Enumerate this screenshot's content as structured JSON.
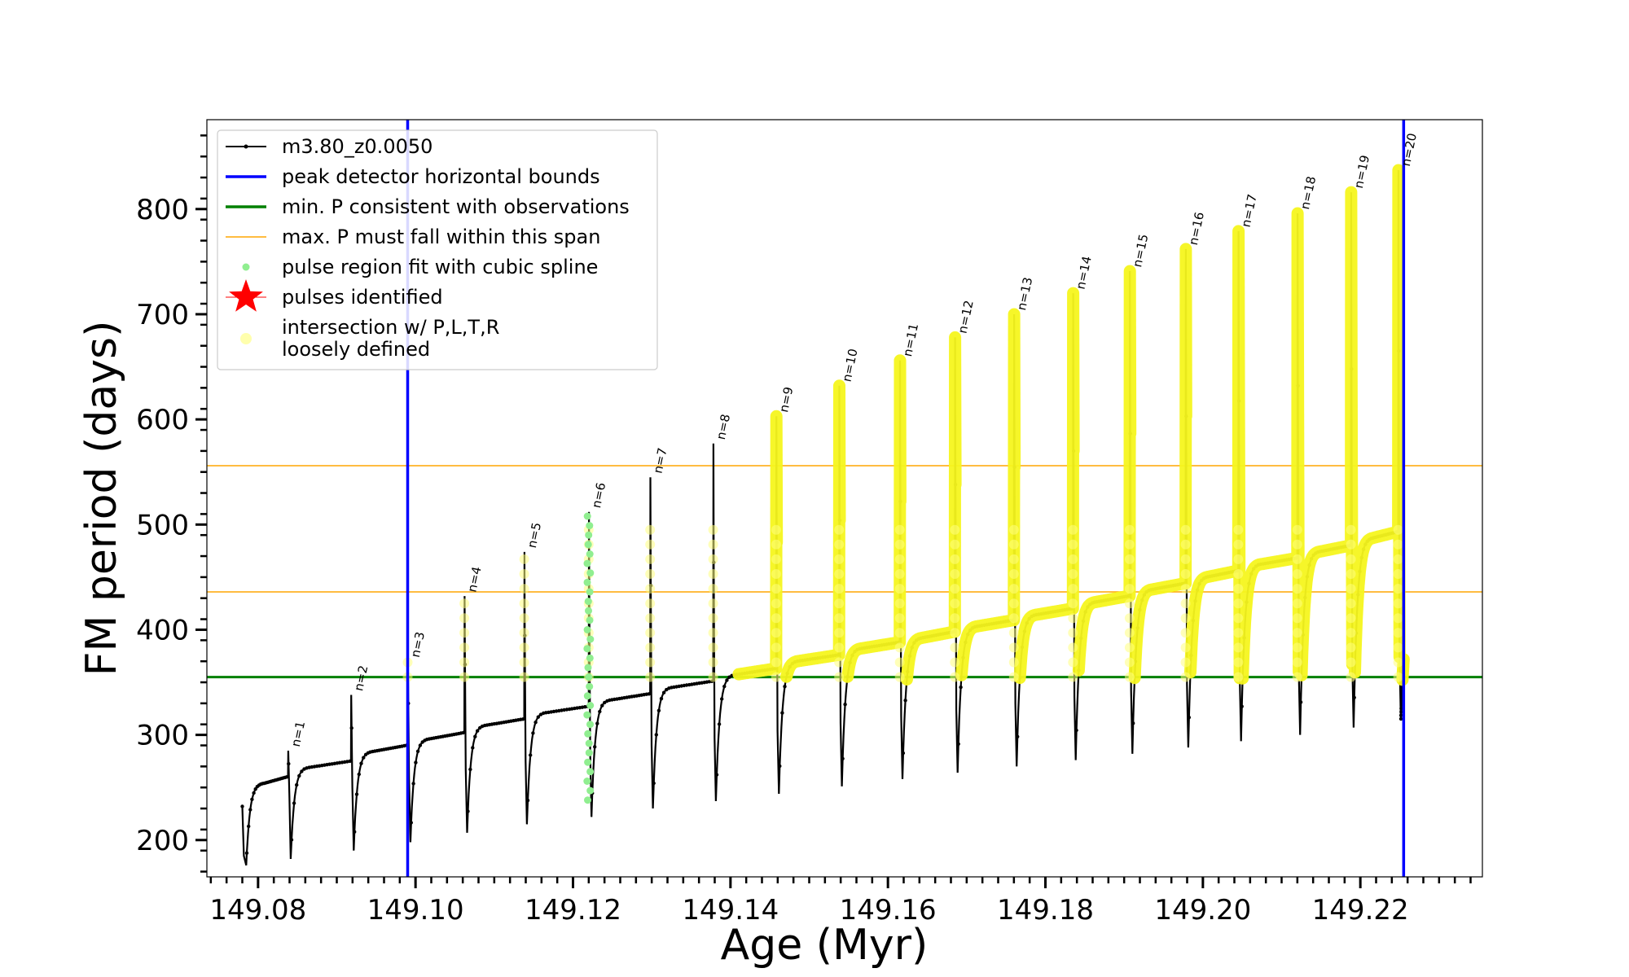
{
  "chart_data": {
    "type": "line",
    "xlabel": "Age (Myr)",
    "ylabel": "FM period (days)",
    "xlim": [
      149.0735,
      149.2355
    ],
    "ylim": [
      165,
      885
    ],
    "x_ticks": [
      149.08,
      149.1,
      149.12,
      149.14,
      149.16,
      149.18,
      149.2,
      149.22
    ],
    "x_tick_labels": [
      "149.08",
      "149.10",
      "149.12",
      "149.14",
      "149.16",
      "149.18",
      "149.20",
      "149.22"
    ],
    "y_ticks": [
      200,
      300,
      400,
      500,
      600,
      700,
      800
    ],
    "y_tick_labels": [
      "200",
      "300",
      "400",
      "500",
      "600",
      "700",
      "800"
    ],
    "grid": false,
    "legend_position": "top-left",
    "legend": [
      {
        "label": "m3.80_z0.0050",
        "style": "line-dots",
        "color": "#000000"
      },
      {
        "label": "peak detector horizontal bounds",
        "style": "line",
        "color": "#0000ff"
      },
      {
        "label": "min. P consistent with observations",
        "style": "line",
        "color": "#008000"
      },
      {
        "label": "max. P must fall within this span",
        "style": "thin-line",
        "color": "#ffa500"
      },
      {
        "label": "pulse region fit with cubic spline",
        "style": "dot",
        "color": "#90ee90"
      },
      {
        "label": "pulses identified",
        "style": "star",
        "color": "#ff0000"
      },
      {
        "label": "intersection w/ P,L,T,R",
        "style": "dot-faint",
        "color": "#ffff99"
      },
      {
        "label": "loosely defined",
        "style": "none",
        "color": "#ffff99"
      }
    ],
    "vertical_lines": [
      149.099,
      149.2255
    ],
    "horizontal_lines": [
      {
        "y": 355,
        "color": "#008000",
        "width": 3
      },
      {
        "y": 436,
        "color": "#ffa500",
        "width": 1.5
      },
      {
        "y": 556,
        "color": "#ffa500",
        "width": 1.5
      }
    ],
    "pulses": [
      {
        "n": "n=1",
        "x": 149.0838,
        "peak": 285,
        "min": 182,
        "plateau": 260
      },
      {
        "n": "n=2",
        "x": 149.0918,
        "peak": 338,
        "min": 190,
        "plateau": 275
      },
      {
        "n": "n=3",
        "x": 149.099,
        "peak": 370,
        "min": 198,
        "plateau": 290
      },
      {
        "n": "n=4",
        "x": 149.1062,
        "peak": 432,
        "min": 207,
        "plateau": 302
      },
      {
        "n": "n=5",
        "x": 149.1138,
        "peak": 474,
        "min": 215,
        "plateau": 315
      },
      {
        "n": "n=6",
        "x": 149.122,
        "peak": 512,
        "min": 222,
        "plateau": 327
      },
      {
        "n": "n=7",
        "x": 149.1298,
        "peak": 545,
        "min": 230,
        "plateau": 339
      },
      {
        "n": "n=8",
        "x": 149.1378,
        "peak": 577,
        "min": 237,
        "plateau": 351
      },
      {
        "n": "n=9",
        "x": 149.1458,
        "peak": 603,
        "min": 244,
        "plateau": 363
      },
      {
        "n": "n=10",
        "x": 149.1538,
        "peak": 632,
        "min": 251,
        "plateau": 376
      },
      {
        "n": "n=11",
        "x": 149.1615,
        "peak": 656,
        "min": 258,
        "plateau": 388
      },
      {
        "n": "n=12",
        "x": 149.1685,
        "peak": 678,
        "min": 264,
        "plateau": 398
      },
      {
        "n": "n=13",
        "x": 149.176,
        "peak": 700,
        "min": 270,
        "plateau": 409
      },
      {
        "n": "n=14",
        "x": 149.1835,
        "peak": 720,
        "min": 276,
        "plateau": 420
      },
      {
        "n": "n=15",
        "x": 149.1907,
        "peak": 741,
        "min": 282,
        "plateau": 432
      },
      {
        "n": "n=16",
        "x": 149.1978,
        "peak": 762,
        "min": 288,
        "plateau": 444
      },
      {
        "n": "n=17",
        "x": 149.2045,
        "peak": 779,
        "min": 294,
        "plateau": 456
      },
      {
        "n": "n=18",
        "x": 149.212,
        "peak": 796,
        "min": 300,
        "plateau": 468
      },
      {
        "n": "n=19",
        "x": 149.2188,
        "peak": 816,
        "min": 307,
        "plateau": 480
      },
      {
        "n": "n=20",
        "x": 149.2248,
        "peak": 837,
        "min": 314,
        "plateau": 493
      }
    ],
    "track_start": {
      "x": 149.078,
      "y": 232
    },
    "track_end": {
      "x": 149.2255,
      "y": 428
    },
    "spline_pulse": "n=6",
    "yellow_from_x": 149.141
  }
}
